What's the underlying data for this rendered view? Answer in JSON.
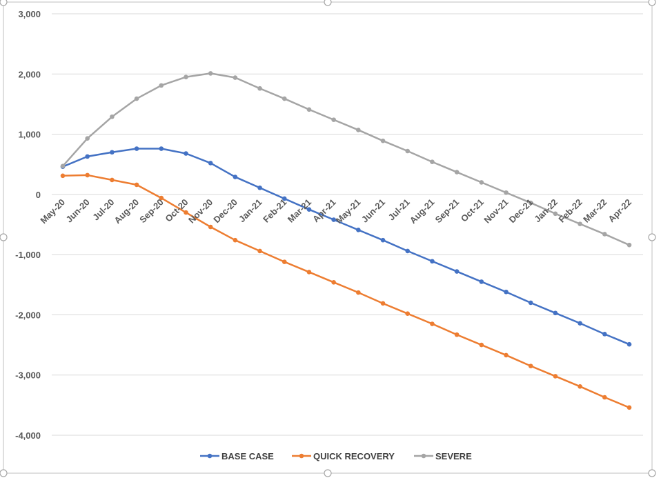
{
  "chart_data": {
    "type": "line",
    "title": "",
    "xlabel": "",
    "ylabel": "",
    "categories": [
      "May-20",
      "Jun-20",
      "Jul-20",
      "Aug-20",
      "Sep-20",
      "Oct-20",
      "Nov-20",
      "Dec-20",
      "Jan-21",
      "Feb-21",
      "Mar-21",
      "Apr-21",
      "May-21",
      "Jun-21",
      "Jul-21",
      "Aug-21",
      "Sep-21",
      "Oct-21",
      "Nov-21",
      "Dec-21",
      "Jan-22",
      "Feb-22",
      "Mar-22",
      "Apr-22"
    ],
    "ylim": [
      -4000,
      3000
    ],
    "yticks": [
      3000,
      2000,
      1000,
      0,
      -1000,
      -2000,
      -3000,
      -4000
    ],
    "ytick_labels": [
      "3,000",
      "2,000",
      "1,000",
      "0",
      "-1,000",
      "-2,000",
      "-3,000",
      "-4,000"
    ],
    "grid": true,
    "legend_position": "bottom",
    "series": [
      {
        "name": "BASE CASE",
        "color": "#4472C4",
        "values": [
          460,
          630,
          700,
          760,
          760,
          680,
          520,
          290,
          110,
          -70,
          -250,
          -420,
          -590,
          -760,
          -940,
          -1110,
          -1280,
          -1450,
          -1620,
          -1800,
          -1970,
          -2140,
          -2320,
          -2490
        ]
      },
      {
        "name": "QUICK RECOVERY",
        "color": "#ED7D31",
        "values": [
          310,
          320,
          240,
          160,
          -60,
          -300,
          -540,
          -760,
          -940,
          -1120,
          -1290,
          -1460,
          -1630,
          -1810,
          -1980,
          -2150,
          -2330,
          -2500,
          -2670,
          -2850,
          -3020,
          -3190,
          -3370,
          -3540
        ]
      },
      {
        "name": "SEVERE",
        "color": "#A5A5A5",
        "values": [
          470,
          930,
          1290,
          1590,
          1810,
          1950,
          2010,
          1940,
          1760,
          1590,
          1410,
          1240,
          1070,
          890,
          720,
          540,
          370,
          200,
          30,
          -140,
          -320,
          -490,
          -660,
          -840
        ]
      }
    ]
  }
}
